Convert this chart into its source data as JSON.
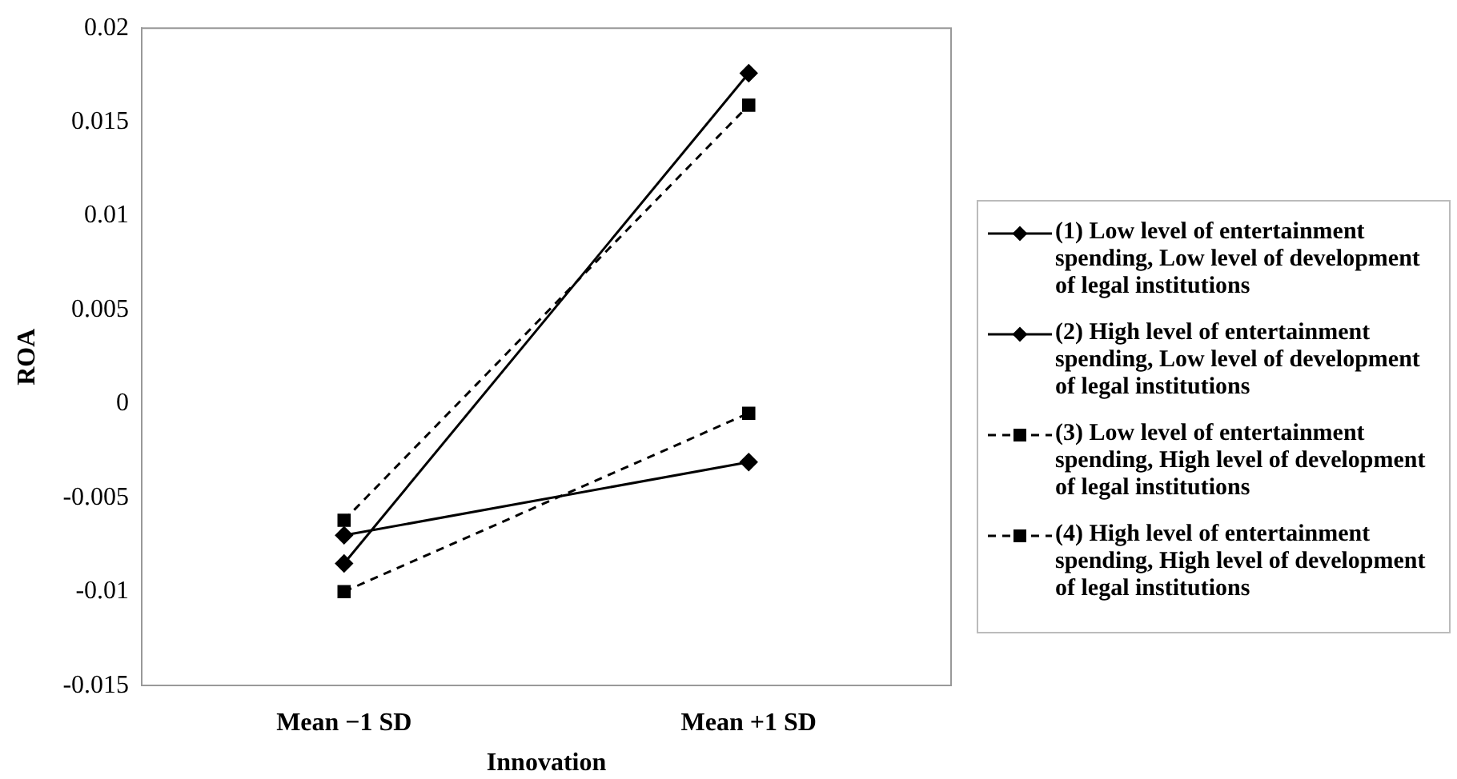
{
  "chart_data": {
    "type": "line",
    "xlabel": "Innovation",
    "ylabel": "ROA",
    "categories": [
      "Mean −1 SD",
      "Mean +1 SD"
    ],
    "ylim": [
      -0.015,
      0.02
    ],
    "yticks": [
      -0.015,
      -0.01,
      -0.005,
      0,
      0.005,
      0.01,
      0.015,
      0.02
    ],
    "grid": false,
    "legend": "right",
    "series": [
      {
        "name": "(1) Low level of entertainment spending, Low level of development of legal institutions",
        "color": "#000000",
        "marker": "diamond",
        "line_style": "solid",
        "values": [
          -0.007,
          -0.0031
        ]
      },
      {
        "name": "(2) High level of entertainment spending, Low level of development of legal institutions",
        "color": "#000000",
        "marker": "diamond",
        "line_style": "solid",
        "values": [
          -0.0085,
          0.0176
        ]
      },
      {
        "name": "(3) Low level of entertainment spending, High level of development of legal institutions",
        "color": "#000000",
        "marker": "square",
        "line_style": "dashed",
        "values": [
          -0.01,
          -0.0005
        ]
      },
      {
        "name": "(4) High level of entertainment spending, High level of development of legal institutions",
        "color": "#000000",
        "marker": "square",
        "line_style": "dashed",
        "values": [
          -0.0062,
          0.0159
        ]
      }
    ]
  }
}
